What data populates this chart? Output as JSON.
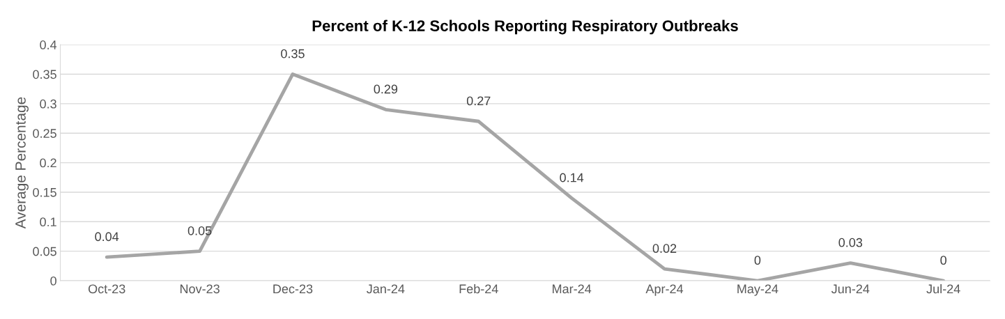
{
  "chart_data": {
    "type": "line",
    "title": "Percent of K-12 Schools Reporting Respiratory Outbreaks",
    "ylabel": "Average Percentage",
    "categories": [
      "Oct-23",
      "Nov-23",
      "Dec-23",
      "Jan-24",
      "Feb-24",
      "Mar-24",
      "Apr-24",
      "May-24",
      "Jun-24",
      "Jul-24"
    ],
    "series": [
      {
        "color": "#a5a5a5",
        "values": [
          0.04,
          0.05,
          0.35,
          0.29,
          0.27,
          0.14,
          0.02,
          0,
          0.03,
          0
        ]
      }
    ],
    "ylim": [
      0,
      0.4
    ],
    "yticks": [
      0,
      0.05,
      0.1,
      0.15,
      0.2,
      0.25,
      0.3,
      0.35,
      0.4
    ],
    "grid": "y",
    "marker": "none",
    "line_style": "solid",
    "data_labels": true,
    "legend": false
  }
}
